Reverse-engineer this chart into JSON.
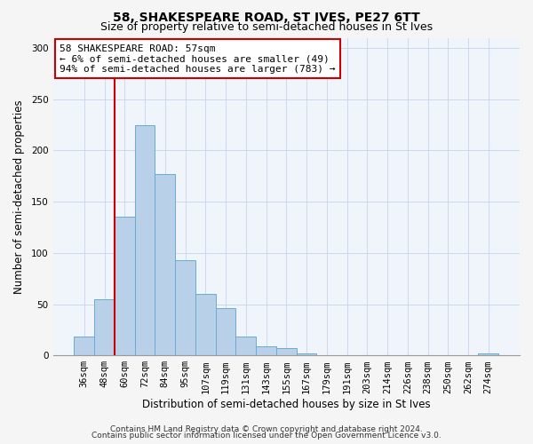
{
  "title": "58, SHAKESPEARE ROAD, ST IVES, PE27 6TT",
  "subtitle": "Size of property relative to semi-detached houses in St Ives",
  "xlabel": "Distribution of semi-detached houses by size in St Ives",
  "ylabel": "Number of semi-detached properties",
  "bar_labels": [
    "36sqm",
    "48sqm",
    "60sqm",
    "72sqm",
    "84sqm",
    "95sqm",
    "107sqm",
    "119sqm",
    "131sqm",
    "143sqm",
    "155sqm",
    "167sqm",
    "179sqm",
    "191sqm",
    "203sqm",
    "214sqm",
    "226sqm",
    "238sqm",
    "250sqm",
    "262sqm",
    "274sqm"
  ],
  "bar_values": [
    18,
    55,
    135,
    225,
    177,
    93,
    60,
    46,
    18,
    9,
    7,
    2,
    0,
    0,
    0,
    0,
    0,
    0,
    0,
    0,
    2
  ],
  "bar_color": "#b8d0e8",
  "bar_edge_color": "#6aaad4",
  "vline_x_idx": 2,
  "vline_color": "#cc0000",
  "annotation_title": "58 SHAKESPEARE ROAD: 57sqm",
  "annotation_line1": "← 6% of semi-detached houses are smaller (49)",
  "annotation_line2": "94% of semi-detached houses are larger (783) →",
  "annotation_box_facecolor": "#ffffff",
  "annotation_box_edgecolor": "#cc0000",
  "ylim": [
    0,
    310
  ],
  "yticks": [
    0,
    50,
    100,
    150,
    200,
    250,
    300
  ],
  "footer1": "Contains HM Land Registry data © Crown copyright and database right 2024.",
  "footer2": "Contains public sector information licensed under the Open Government Licence v3.0.",
  "title_fontsize": 10,
  "subtitle_fontsize": 9,
  "axis_label_fontsize": 8.5,
  "tick_fontsize": 7.5,
  "annotation_fontsize": 8,
  "footer_fontsize": 6.5,
  "figure_facecolor": "#f5f5f5",
  "axes_facecolor": "#f0f4fb",
  "grid_color": "#c8d4e8"
}
